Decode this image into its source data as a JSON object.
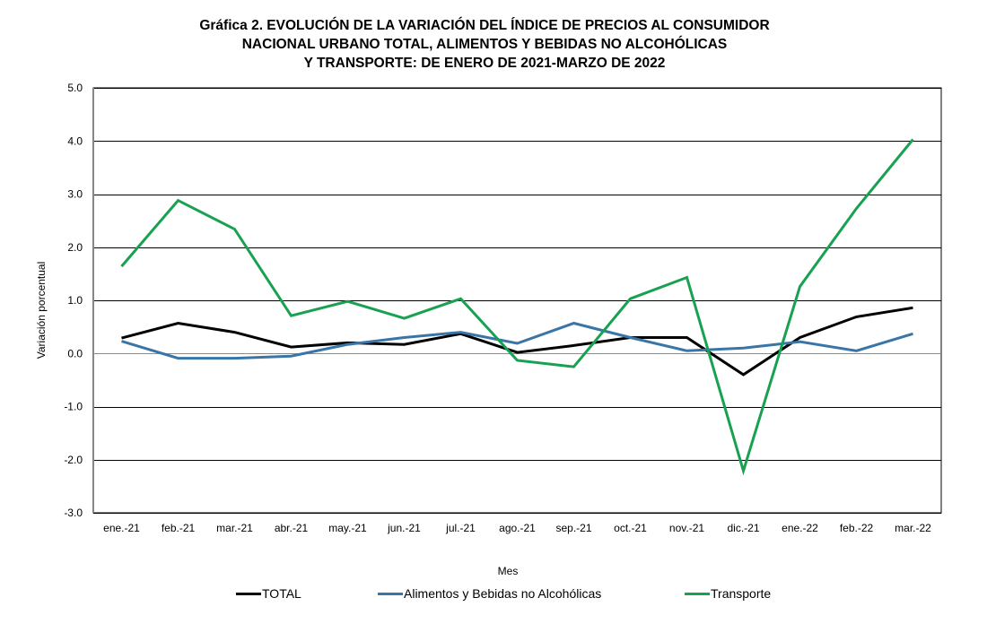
{
  "chart_data": {
    "type": "line",
    "title": [
      "Gráfica 2. EVOLUCIÓN DE LA VARIACIÓN DEL ÍNDICE DE PRECIOS AL CONSUMIDOR",
      "NACIONAL URBANO TOTAL, ALIMENTOS Y BEBIDAS NO ALCOHÓLICAS",
      "Y TRANSPORTE: DE ENERO DE 2021-MARZO DE 2022"
    ],
    "xlabel": "Mes",
    "ylabel": "Variación porcentual",
    "ylim": [
      -3.0,
      5.0
    ],
    "yticks": [
      "5.0",
      "4.0",
      "3.0",
      "2.0",
      "1.0",
      "0.0",
      "-1.0",
      "-2.0",
      "-3.0"
    ],
    "ytick_values": [
      5,
      4,
      3,
      2,
      1,
      0,
      -1,
      -2,
      -3
    ],
    "grid": true,
    "legend_position": "bottom",
    "categories": [
      "ene.-21",
      "feb.-21",
      "mar.-21",
      "abr.-21",
      "may.-21",
      "jun.-21",
      "jul.-21",
      "ago.-21",
      "sep.-21",
      "oct.-21",
      "nov.-21",
      "dic.-21",
      "ene.-22",
      "feb.-22",
      "mar.-22"
    ],
    "series": [
      {
        "name": "TOTAL",
        "color": "#000000",
        "values": [
          0.29,
          0.57,
          0.4,
          0.12,
          0.2,
          0.17,
          0.37,
          0.02,
          0.15,
          0.3,
          0.3,
          -0.4,
          0.3,
          0.69,
          0.86
        ]
      },
      {
        "name": "Alimentos y Bebidas no Alcohólicas",
        "color": "#3a75a8",
        "values": [
          0.23,
          -0.09,
          -0.09,
          -0.05,
          0.17,
          0.3,
          0.4,
          0.19,
          0.57,
          0.3,
          0.05,
          0.1,
          0.22,
          0.05,
          0.37
        ]
      },
      {
        "name": "Transporte",
        "color": "#17a150",
        "values": [
          1.64,
          2.88,
          2.34,
          0.71,
          0.98,
          0.66,
          1.03,
          -0.13,
          -0.25,
          1.03,
          1.43,
          -2.21,
          1.26,
          2.73,
          4.03
        ]
      }
    ]
  }
}
